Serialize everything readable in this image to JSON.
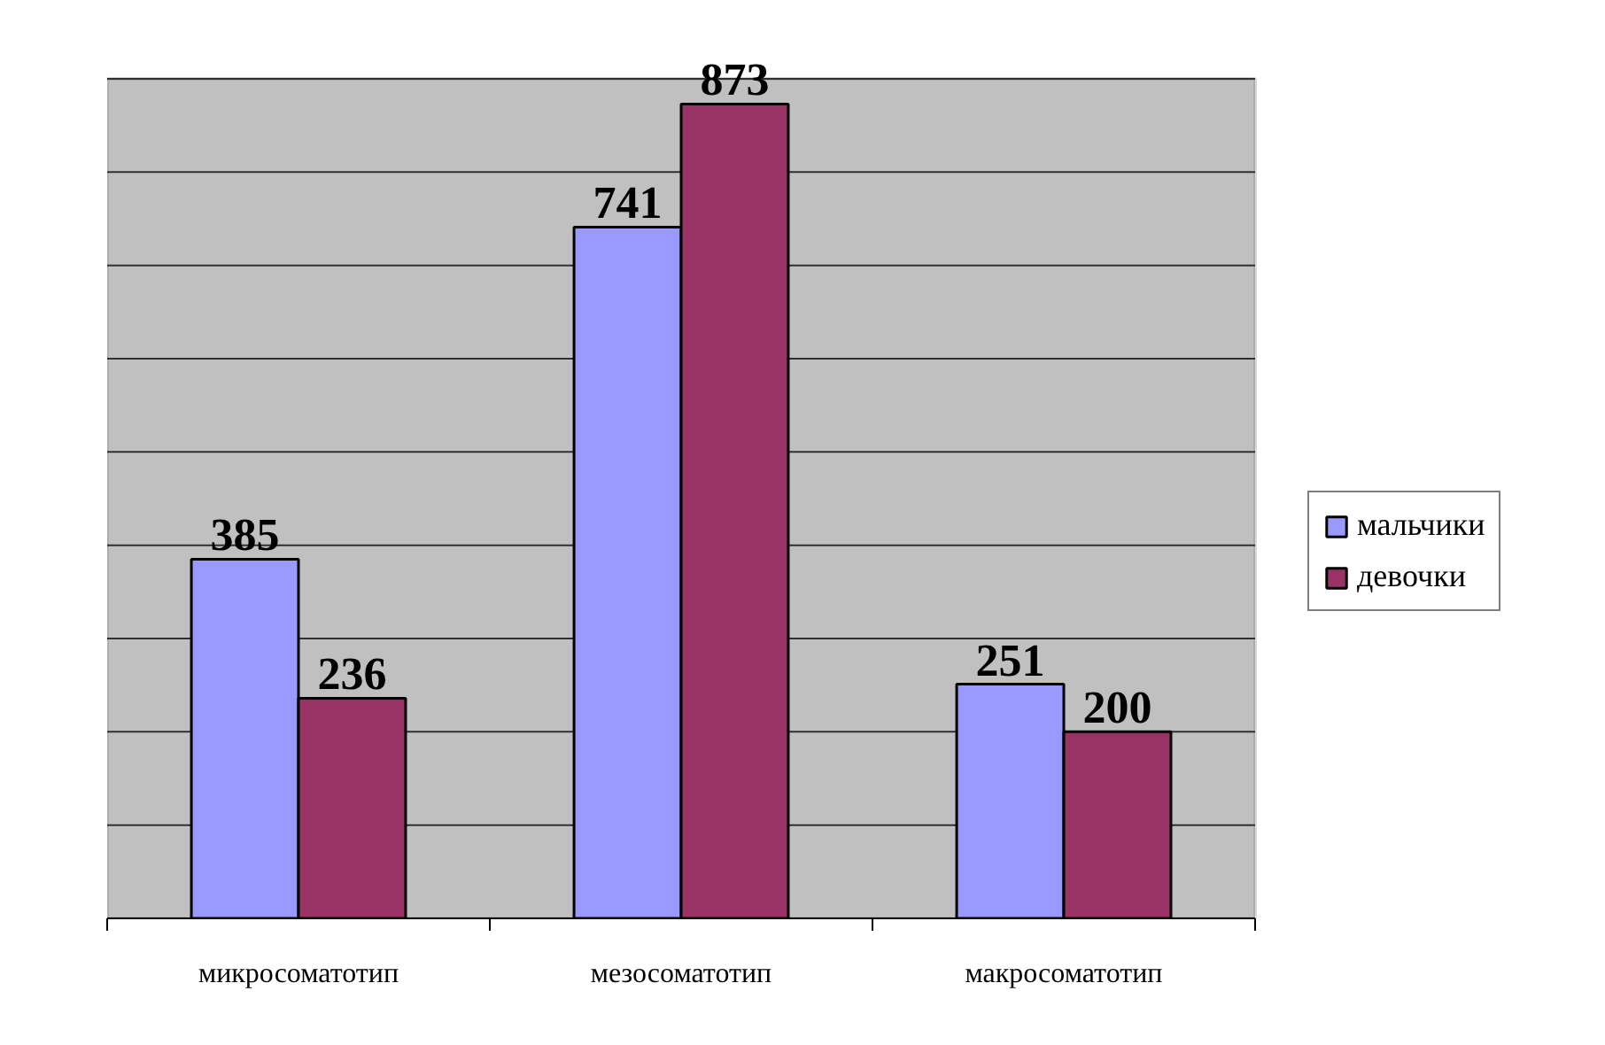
{
  "chart_data": {
    "type": "bar",
    "categories": [
      "микросоматотип",
      "мезосоматотип",
      "макросоматотип"
    ],
    "series": [
      {
        "name": "мальчики",
        "color": "#9999ff",
        "values": [
          385,
          741,
          251
        ]
      },
      {
        "name": "девочки",
        "color": "#993366",
        "values": [
          236,
          873,
          200
        ]
      }
    ],
    "ylim": [
      0,
      900
    ],
    "yticks": [
      {
        "value": 0,
        "label": null
      },
      {
        "value": 100,
        "label": null
      },
      {
        "value": 200,
        "label": null
      },
      {
        "value": 300,
        "label": null
      },
      {
        "value": 400,
        "label": null
      },
      {
        "value": 500,
        "label": null
      },
      {
        "value": 600,
        "label": null
      },
      {
        "value": 700,
        "label": null
      },
      {
        "value": 800,
        "label": null
      },
      {
        "value": 900,
        "label": null
      }
    ],
    "grid": "y",
    "legend": "right",
    "tick_labels": "x",
    "data_labels": true
  }
}
